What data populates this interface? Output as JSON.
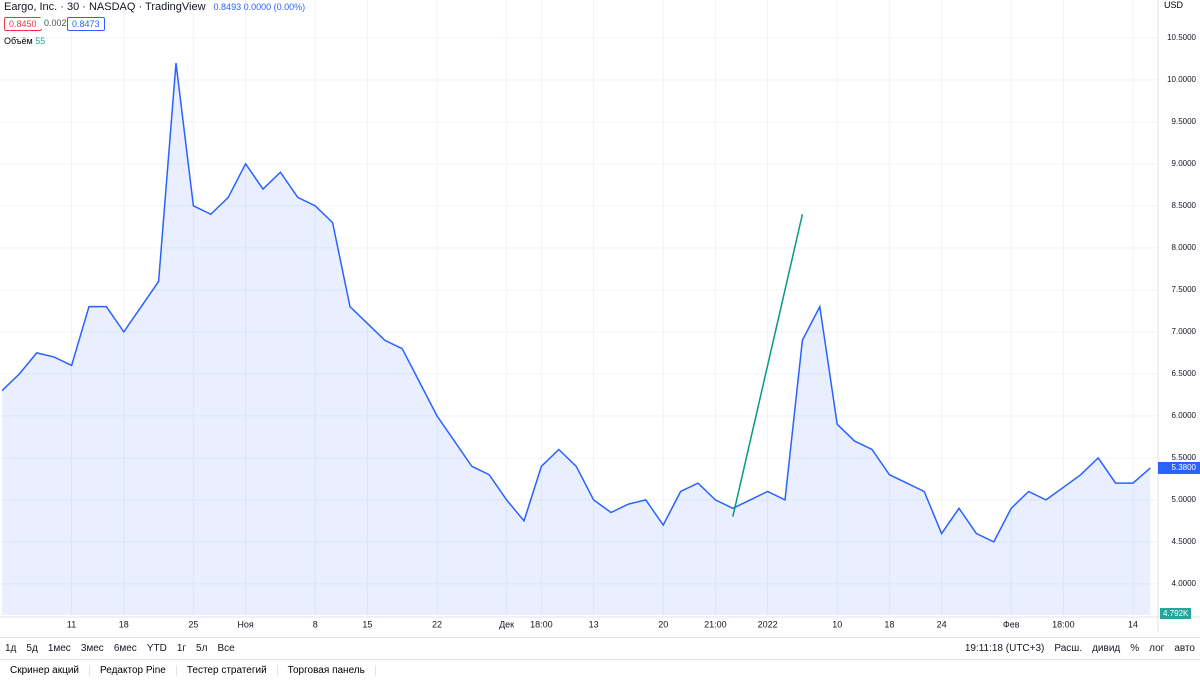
{
  "header": {
    "symbol": "Eargo, Inc. · 30 · NASDAQ · TradingView",
    "quote": "0.8493 0.0000 (0.00%)",
    "bid": "0.8450",
    "spread": "0.0023",
    "ask": "0.8473",
    "volume_label": "Объём",
    "volume_value": "55",
    "currency": "USD",
    "volume_tag": "4.792K"
  },
  "toolbar": {
    "ranges": [
      "1д",
      "5д",
      "1мес",
      "3мес",
      "6мес",
      "YTD",
      "1г",
      "5л",
      "Все"
    ],
    "time": "19:11:18 (UTC+3)",
    "right": [
      "Расш.",
      "дивид",
      "%",
      "лог",
      "авто"
    ]
  },
  "tabs": [
    "Скринер акций",
    "Редактор Pine",
    "Тестер стратегий",
    "Торговая панель"
  ],
  "chart_data": {
    "type": "line",
    "categories": [
      null,
      null,
      null,
      null,
      "11",
      null,
      null,
      "18",
      null,
      null,
      null,
      "25",
      null,
      null,
      "Ноя",
      null,
      null,
      null,
      "8",
      null,
      null,
      "15",
      null,
      null,
      null,
      "22",
      null,
      null,
      null,
      "Дек",
      null,
      "18:00",
      null,
      null,
      "13",
      null,
      null,
      null,
      "20",
      null,
      null,
      "21:00",
      null,
      null,
      "2022",
      null,
      null,
      null,
      "10",
      null,
      null,
      "18",
      null,
      null,
      "24",
      null,
      null,
      null,
      "Фев",
      null,
      null,
      "18:00",
      null,
      null,
      null,
      "14",
      null
    ],
    "series": [
      {
        "color": "#2962ff",
        "values": [
          6.3,
          6.5,
          6.75,
          6.7,
          6.6,
          7.3,
          7.3,
          7.0,
          7.3,
          7.6,
          10.2,
          8.5,
          8.4,
          8.6,
          9.0,
          8.7,
          8.9,
          8.6,
          8.5,
          8.3,
          7.3,
          7.1,
          6.9,
          6.8,
          6.4,
          6.0,
          5.7,
          5.4,
          5.3,
          5.0,
          4.75,
          5.4,
          5.6,
          5.4,
          5.0,
          4.85,
          4.95,
          5.0,
          4.7,
          5.1,
          5.2,
          5.0,
          4.9,
          5.0,
          5.1,
          5.0,
          6.9,
          7.3,
          5.9,
          5.7,
          5.6,
          5.3,
          5.2,
          5.1,
          4.6,
          4.9,
          4.6,
          4.5,
          4.9,
          5.1,
          5.0,
          5.15,
          5.3,
          5.5,
          5.2,
          5.2,
          5.38
        ]
      },
      {
        "color": "#089981",
        "values": [
          null,
          null,
          null,
          null,
          null,
          null,
          null,
          null,
          null,
          null,
          null,
          null,
          null,
          null,
          null,
          null,
          null,
          null,
          null,
          null,
          null,
          null,
          null,
          null,
          null,
          null,
          null,
          null,
          null,
          null,
          null,
          null,
          null,
          null,
          null,
          null,
          null,
          null,
          null,
          null,
          null,
          null,
          4.8,
          null,
          null,
          null,
          8.4,
          null,
          null,
          null,
          null,
          null,
          null,
          null,
          null,
          null,
          null,
          null,
          null,
          null,
          null,
          null,
          null,
          null,
          null,
          null,
          null
        ]
      }
    ],
    "last_price": {
      "value": 5.38,
      "label": "5.3800"
    },
    "ylim": [
      3.63,
      10.95
    ],
    "yticks": [
      {
        "value": 4,
        "label": "4.0000"
      },
      {
        "value": 4.5,
        "label": "4.5000"
      },
      {
        "value": 5,
        "label": "5.0000"
      },
      {
        "value": 5.5,
        "label": "5.5000"
      },
      {
        "value": 6,
        "label": "6.0000"
      },
      {
        "value": 6.5,
        "label": "6.5000"
      },
      {
        "value": 7,
        "label": "7.0000"
      },
      {
        "value": 7.5,
        "label": "7.5000"
      },
      {
        "value": 8,
        "label": "8.0000"
      },
      {
        "value": 8.5,
        "label": "8.5000"
      },
      {
        "value": 9,
        "label": "9.0000"
      },
      {
        "value": 9.5,
        "label": "9.5000"
      },
      {
        "value": 10,
        "label": "10.0000"
      },
      {
        "value": 10.5,
        "label": "10.5000"
      }
    ],
    "grid": true
  }
}
